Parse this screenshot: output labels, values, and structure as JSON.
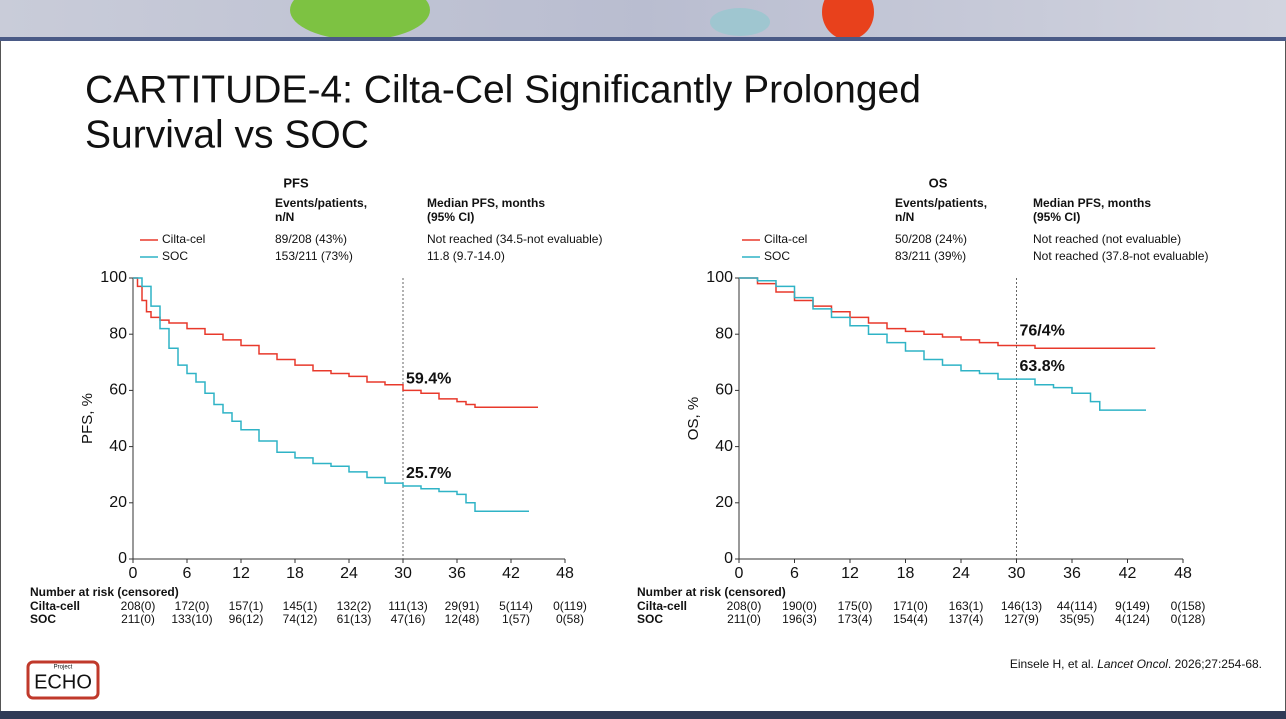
{
  "title": "CARTITUDE-4: Cilta-Cel Significantly Prolonged Survival vs SOC",
  "logo": {
    "small": "Project",
    "text": "ECHO"
  },
  "citation": {
    "before": "Einsele H, et al. ",
    "journal": "Lancet Oncol",
    "after": ". 2026;27:254-68."
  },
  "chart_data": [
    {
      "type": "line",
      "step": true,
      "title": "PFS",
      "ylabel": "PFS, %",
      "header": {
        "events": [
          "Events/patients,",
          "n/N"
        ],
        "median": [
          "Median PFS, months",
          "(95% CI)"
        ]
      },
      "xlim": [
        0,
        48
      ],
      "xticks": [
        0,
        6,
        12,
        18,
        24,
        30,
        36,
        42,
        48
      ],
      "ylim": [
        0,
        100
      ],
      "yticks": [
        0,
        20,
        40,
        60,
        80,
        100
      ],
      "reference_x": 30,
      "series": [
        {
          "name": "Cilta-cel",
          "color": "#e8392b",
          "events": "89/208 (43%)",
          "median": "Not reached (34.5-not evaluable)",
          "x": [
            0,
            0.5,
            1,
            1.5,
            2,
            3,
            4,
            6,
            8,
            10,
            12,
            14,
            16,
            18,
            20,
            22,
            24,
            26,
            28,
            30,
            32,
            34,
            36,
            37,
            38,
            40,
            42,
            45
          ],
          "values": [
            100,
            97,
            92,
            88,
            86,
            85,
            84,
            82,
            80,
            78,
            76,
            73,
            71,
            69,
            67,
            66,
            65,
            63,
            62,
            60,
            59,
            57,
            56,
            55,
            54,
            54,
            54,
            54
          ]
        },
        {
          "name": "SOC",
          "color": "#2fb3c6",
          "events": "153/211 (73%)",
          "median": "11.8 (9.7-14.0)",
          "x": [
            0,
            1,
            2,
            3,
            4,
            5,
            6,
            7,
            8,
            9,
            10,
            11,
            12,
            14,
            16,
            18,
            20,
            22,
            24,
            26,
            28,
            30,
            32,
            34,
            36,
            37,
            38,
            40,
            42,
            44
          ],
          "values": [
            100,
            97,
            90,
            82,
            75,
            69,
            66,
            63,
            59,
            55,
            52,
            49,
            46,
            42,
            38,
            36,
            34,
            33,
            31,
            29,
            27,
            26,
            25,
            24,
            23,
            20,
            17,
            17,
            17,
            17
          ]
        }
      ],
      "annotations": [
        {
          "value": 59.4,
          "label": "59.4%",
          "x": 30,
          "color": "#e8392b"
        },
        {
          "value": 25.7,
          "label": "25.7%",
          "x": 30,
          "color": "#2fb3c6"
        }
      ],
      "risk_table": {
        "title": "Number at risk (censored)",
        "rows": [
          {
            "label": "Cilta-cell",
            "values": [
              "208(0)",
              "172(0)",
              "157(1)",
              "145(1)",
              "132(2)",
              "111(13)",
              "29(91)",
              "5(114)",
              "0(119)"
            ]
          },
          {
            "label": "SOC",
            "values": [
              "211(0)",
              "133(10)",
              "96(12)",
              "74(12)",
              "61(13)",
              "47(16)",
              "12(48)",
              "1(57)",
              "0(58)"
            ]
          }
        ]
      }
    },
    {
      "type": "line",
      "step": true,
      "title": "OS",
      "ylabel": "OS, %",
      "header": {
        "events": [
          "Events/patients,",
          "n/N"
        ],
        "median": [
          "Median PFS, months",
          "(95% CI)"
        ]
      },
      "xlim": [
        0,
        48
      ],
      "xticks": [
        0,
        6,
        12,
        18,
        24,
        30,
        36,
        42,
        48
      ],
      "ylim": [
        0,
        100
      ],
      "yticks": [
        0,
        20,
        40,
        60,
        80,
        100
      ],
      "reference_x": 30,
      "series": [
        {
          "name": "Cilta-cel",
          "color": "#e8392b",
          "events": "50/208 (24%)",
          "median": "Not reached (not evaluable)",
          "x": [
            0,
            2,
            4,
            6,
            8,
            10,
            12,
            14,
            16,
            18,
            20,
            22,
            24,
            26,
            28,
            30,
            32,
            36,
            40,
            45
          ],
          "values": [
            100,
            98,
            95,
            92,
            90,
            88,
            86,
            84,
            82,
            81,
            80,
            79,
            78,
            77,
            76,
            76,
            75,
            75,
            75,
            75
          ]
        },
        {
          "name": "SOC",
          "color": "#2fb3c6",
          "events": "83/211 (39%)",
          "median": "Not reached (37.8-not evaluable)",
          "x": [
            0,
            2,
            4,
            6,
            8,
            10,
            12,
            14,
            16,
            18,
            20,
            22,
            24,
            26,
            28,
            30,
            32,
            34,
            36,
            38,
            39,
            42,
            44
          ],
          "values": [
            100,
            99,
            97,
            93,
            89,
            86,
            83,
            80,
            77,
            74,
            71,
            69,
            67,
            66,
            64,
            64,
            62,
            61,
            59,
            56,
            53,
            53,
            53
          ]
        }
      ],
      "annotations": [
        {
          "value": 76.4,
          "label": "76/4%",
          "x": 30,
          "color": "#e8392b"
        },
        {
          "value": 63.8,
          "label": "63.8%",
          "x": 30,
          "color": "#2fb3c6"
        }
      ],
      "risk_table": {
        "title": "Number at risk (censored)",
        "rows": [
          {
            "label": "Cilta-cell",
            "values": [
              "208(0)",
              "190(0)",
              "175(0)",
              "171(0)",
              "163(1)",
              "146(13)",
              "44(114)",
              "9(149)",
              "0(158)"
            ]
          },
          {
            "label": "SOC",
            "values": [
              "211(0)",
              "196(3)",
              "173(4)",
              "154(4)",
              "137(4)",
              "127(9)",
              "35(95)",
              "4(124)",
              "0(128)"
            ]
          }
        ]
      }
    }
  ]
}
